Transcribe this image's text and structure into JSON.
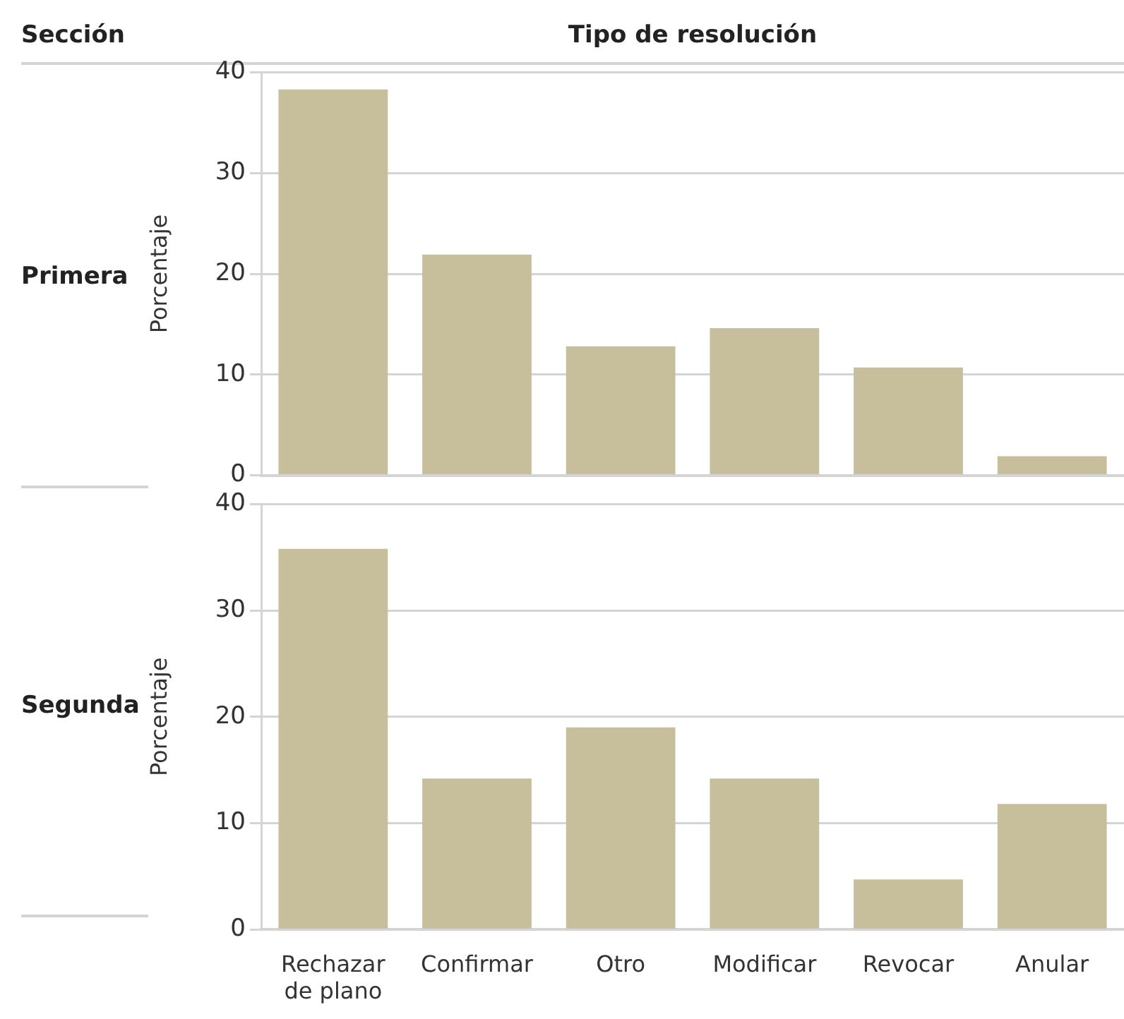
{
  "chart_data": [
    {
      "type": "bar",
      "title": "Primera",
      "annotations": [
        "Sección",
        "Tipo de resolución"
      ],
      "ylabel": "Porcentaje",
      "values": [
        38.3,
        21.9,
        12.8,
        14.6,
        10.7,
        1.9
      ],
      "color": "#c7be9c",
      "ylim": [
        0,
        40
      ],
      "yticks": [
        0,
        10,
        20,
        30,
        40
      ],
      "grid": "y",
      "tick_labels": "y"
    },
    {
      "type": "bar",
      "title": "Segunda",
      "ylabel": "Porcentaje",
      "categories": [
        "Rechazar de plano",
        "Confirmar",
        "Otro",
        "Modificar",
        "Revocar",
        "Anular"
      ],
      "values": [
        35.8,
        14.2,
        19.0,
        14.2,
        4.7,
        11.8
      ],
      "color": "#c7be9c",
      "ylim": [
        0,
        40
      ],
      "yticks": [
        0,
        10,
        20,
        30,
        40
      ],
      "grid": "y"
    }
  ]
}
